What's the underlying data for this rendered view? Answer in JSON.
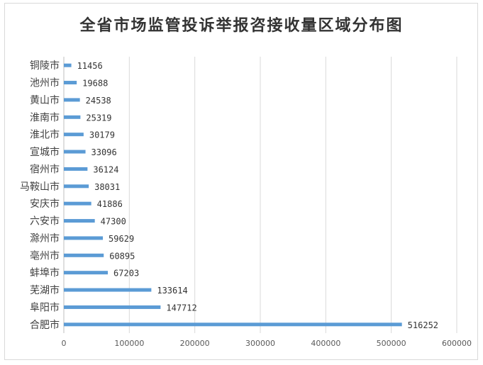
{
  "chart_data": {
    "type": "bar",
    "orientation": "horizontal",
    "title": "全省市场监管投诉举报咨接收量区域分布图",
    "categories": [
      "铜陵市",
      "池州市",
      "黄山市",
      "淮南市",
      "淮北市",
      "宣城市",
      "宿州市",
      "马鞍山市",
      "安庆市",
      "六安市",
      "滁州市",
      "亳州市",
      "蚌埠市",
      "芜湖市",
      "阜阳市",
      "合肥市"
    ],
    "values": [
      11456,
      19688,
      24538,
      25319,
      30179,
      33096,
      36124,
      38031,
      41886,
      47300,
      59629,
      60895,
      67203,
      133614,
      147712,
      516252
    ],
    "value_labels": [
      "11456",
      "19688",
      "24538",
      "25319",
      "30179",
      "33096",
      "36124",
      "38031",
      "41886",
      "47300",
      "59629",
      "60895",
      "67203",
      "133614",
      "147712",
      "516252"
    ],
    "xlim": [
      0,
      600000
    ],
    "x_ticks": [
      "0",
      "100000",
      "200000",
      "300000",
      "400000",
      "500000",
      "600000"
    ],
    "bar_color": "#5b9bd5",
    "grid": true,
    "legend": "none"
  }
}
